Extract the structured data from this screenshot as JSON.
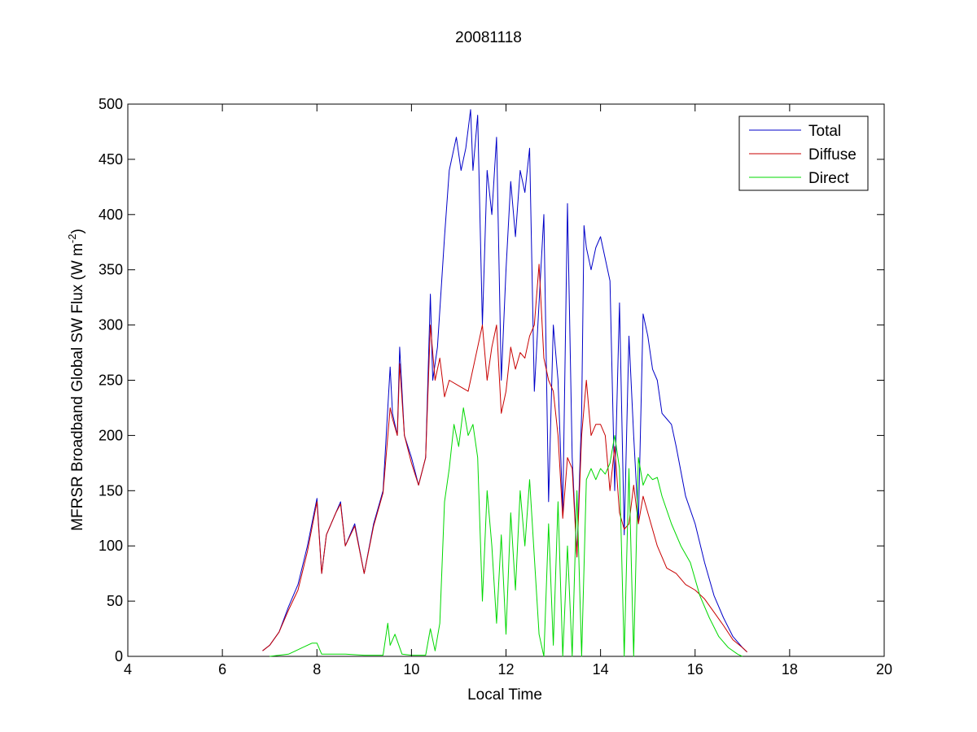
{
  "chart_data": {
    "type": "line",
    "title": "20081118",
    "xlabel": "Local Time",
    "ylabel_main": "MFRSR Broadband Global SW Flux (W m",
    "ylabel_sup": "-2",
    "ylabel_close": ")",
    "xlim": [
      4,
      20
    ],
    "ylim": [
      0,
      500
    ],
    "xticks": [
      4,
      6,
      8,
      10,
      12,
      14,
      16,
      18,
      20
    ],
    "yticks": [
      0,
      50,
      100,
      150,
      200,
      250,
      300,
      350,
      400,
      450,
      500
    ],
    "grid": false,
    "legend_position": "top-right",
    "colors": {
      "Total": "#0000c8",
      "Diffuse": "#c80000",
      "Direct": "#00d800"
    },
    "series": [
      {
        "name": "Total",
        "x": [
          6.85,
          7.0,
          7.2,
          7.4,
          7.6,
          7.8,
          8.0,
          8.1,
          8.2,
          8.4,
          8.5,
          8.6,
          8.8,
          9.0,
          9.2,
          9.4,
          9.55,
          9.6,
          9.7,
          9.75,
          9.85,
          10.0,
          10.15,
          10.3,
          10.4,
          10.45,
          10.55,
          10.7,
          10.8,
          10.85,
          10.95,
          11.05,
          11.15,
          11.25,
          11.3,
          11.4,
          11.5,
          11.6,
          11.7,
          11.8,
          11.9,
          12.0,
          12.1,
          12.2,
          12.3,
          12.4,
          12.5,
          12.6,
          12.7,
          12.8,
          12.9,
          13.0,
          13.1,
          13.2,
          13.3,
          13.4,
          13.5,
          13.6,
          13.65,
          13.7,
          13.8,
          13.9,
          14.0,
          14.1,
          14.2,
          14.3,
          14.4,
          14.5,
          14.6,
          14.7,
          14.8,
          14.9,
          15.0,
          15.1,
          15.2,
          15.3,
          15.4,
          15.5,
          15.6,
          15.8,
          16.0,
          16.2,
          16.4,
          16.6,
          16.8,
          17.0,
          17.1
        ],
        "values": [
          5,
          10,
          22,
          45,
          65,
          100,
          143,
          75,
          110,
          130,
          140,
          100,
          120,
          75,
          120,
          150,
          262,
          220,
          200,
          280,
          200,
          180,
          155,
          180,
          328,
          250,
          280,
          380,
          440,
          450,
          470,
          440,
          460,
          495,
          440,
          490,
          300,
          440,
          400,
          470,
          250,
          350,
          430,
          380,
          440,
          420,
          460,
          240,
          320,
          400,
          140,
          300,
          250,
          130,
          410,
          180,
          90,
          220,
          390,
          370,
          350,
          370,
          380,
          360,
          340,
          150,
          320,
          110,
          290,
          200,
          120,
          310,
          290,
          260,
          250,
          220,
          215,
          210,
          190,
          145,
          120,
          85,
          55,
          35,
          18,
          8,
          4
        ]
      },
      {
        "name": "Diffuse",
        "x": [
          6.85,
          7.0,
          7.2,
          7.4,
          7.6,
          7.8,
          8.0,
          8.1,
          8.2,
          8.4,
          8.5,
          8.6,
          8.8,
          9.0,
          9.2,
          9.4,
          9.55,
          9.6,
          9.7,
          9.75,
          9.85,
          10.0,
          10.15,
          10.3,
          10.4,
          10.5,
          10.6,
          10.7,
          10.8,
          11.0,
          11.2,
          11.4,
          11.5,
          11.6,
          11.7,
          11.8,
          11.9,
          12.0,
          12.1,
          12.2,
          12.3,
          12.4,
          12.5,
          12.6,
          12.7,
          12.8,
          12.9,
          13.0,
          13.1,
          13.2,
          13.3,
          13.4,
          13.5,
          13.6,
          13.7,
          13.8,
          13.9,
          14.0,
          14.1,
          14.2,
          14.3,
          14.4,
          14.5,
          14.6,
          14.7,
          14.8,
          14.9,
          15.0,
          15.2,
          15.4,
          15.6,
          15.8,
          16.0,
          16.2,
          16.4,
          16.6,
          16.8,
          17.0,
          17.1
        ],
        "values": [
          5,
          10,
          22,
          42,
          60,
          95,
          140,
          75,
          110,
          130,
          138,
          100,
          118,
          75,
          118,
          148,
          225,
          215,
          200,
          265,
          200,
          175,
          155,
          180,
          300,
          250,
          270,
          235,
          250,
          245,
          240,
          280,
          300,
          250,
          280,
          300,
          220,
          240,
          280,
          260,
          275,
          270,
          290,
          300,
          355,
          270,
          250,
          240,
          200,
          125,
          180,
          170,
          90,
          200,
          250,
          200,
          210,
          210,
          200,
          150,
          190,
          130,
          115,
          120,
          155,
          120,
          145,
          130,
          100,
          80,
          75,
          65,
          60,
          52,
          40,
          28,
          15,
          8,
          4
        ]
      },
      {
        "name": "Direct",
        "x": [
          7.0,
          7.4,
          7.7,
          7.9,
          8.0,
          8.1,
          8.3,
          8.6,
          9.0,
          9.4,
          9.5,
          9.55,
          9.65,
          9.8,
          10.0,
          10.3,
          10.4,
          10.5,
          10.6,
          10.7,
          10.8,
          10.9,
          11.0,
          11.1,
          11.2,
          11.3,
          11.4,
          11.5,
          11.6,
          11.7,
          11.8,
          11.9,
          12.0,
          12.1,
          12.2,
          12.3,
          12.4,
          12.5,
          12.6,
          12.7,
          12.8,
          12.9,
          13.0,
          13.1,
          13.2,
          13.3,
          13.4,
          13.5,
          13.6,
          13.7,
          13.8,
          13.9,
          14.0,
          14.1,
          14.2,
          14.3,
          14.4,
          14.5,
          14.6,
          14.7,
          14.8,
          14.9,
          15.0,
          15.1,
          15.2,
          15.3,
          15.5,
          15.7,
          15.9,
          16.1,
          16.3,
          16.5,
          16.7,
          16.9,
          17.0
        ],
        "values": [
          0,
          2,
          8,
          12,
          12,
          2,
          2,
          2,
          1,
          1,
          30,
          10,
          20,
          2,
          1,
          1,
          25,
          5,
          30,
          140,
          170,
          210,
          190,
          225,
          200,
          210,
          180,
          50,
          150,
          100,
          30,
          110,
          20,
          130,
          60,
          150,
          100,
          160,
          90,
          20,
          0,
          120,
          10,
          140,
          0,
          100,
          0,
          150,
          0,
          160,
          170,
          160,
          170,
          165,
          175,
          200,
          170,
          0,
          170,
          0,
          180,
          155,
          165,
          160,
          162,
          145,
          120,
          100,
          85,
          55,
          35,
          18,
          8,
          2,
          0
        ]
      }
    ]
  }
}
